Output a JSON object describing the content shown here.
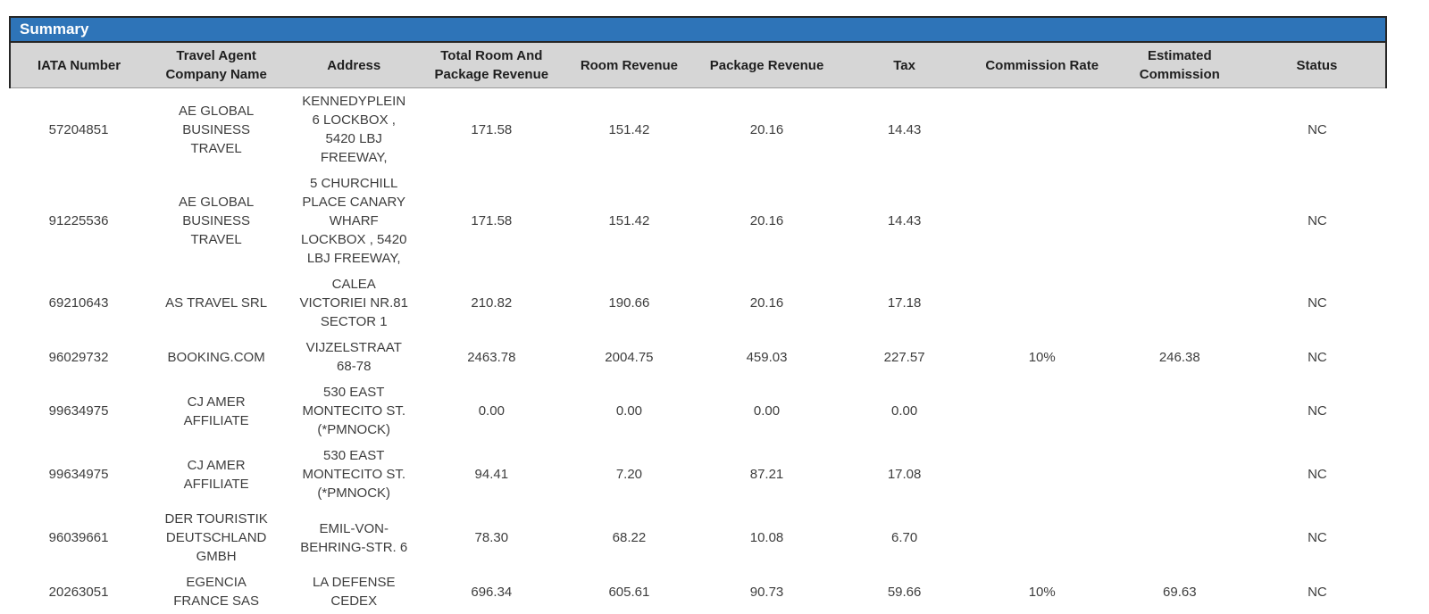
{
  "summary": {
    "title": "Summary"
  },
  "table": {
    "columns": [
      "IATA Number",
      "Travel Agent Company Name",
      "Address",
      "Total Room And Package Revenue",
      "Room Revenue",
      "Package Revenue",
      "Tax",
      "Commission Rate",
      "Estimated Commission",
      "Status"
    ],
    "rows": [
      {
        "iata": "57204851",
        "company": "AE GLOBAL BUSINESS TRAVEL",
        "address": "KENNEDYPLEIN 6 LOCKBOX , 5420 LBJ FREEWAY,",
        "total": "171.58",
        "room": "151.42",
        "package": "20.16",
        "tax": "14.43",
        "commission_rate": "",
        "estimated_commission": "",
        "status": "NC"
      },
      {
        "iata": "91225536",
        "company": "AE GLOBAL BUSINESS TRAVEL",
        "address": "5 CHURCHILL PLACE CANARY WHARF LOCKBOX , 5420 LBJ FREEWAY,",
        "total": "171.58",
        "room": "151.42",
        "package": "20.16",
        "tax": "14.43",
        "commission_rate": "",
        "estimated_commission": "",
        "status": "NC"
      },
      {
        "iata": "69210643",
        "company": "AS TRAVEL SRL",
        "address": "CALEA VICTORIEI NR.81 SECTOR 1",
        "total": "210.82",
        "room": "190.66",
        "package": "20.16",
        "tax": "17.18",
        "commission_rate": "",
        "estimated_commission": "",
        "status": "NC"
      },
      {
        "iata": "96029732",
        "company": "BOOKING.COM",
        "address": "VIJZELSTRAAT 68-78",
        "total": "2463.78",
        "room": "2004.75",
        "package": "459.03",
        "tax": "227.57",
        "commission_rate": "10%",
        "estimated_commission": "246.38",
        "status": "NC"
      },
      {
        "iata": "99634975",
        "company": "CJ AMER AFFILIATE",
        "address": "530 EAST MONTECITO ST. (*PMNOCK)",
        "total": "0.00",
        "room": "0.00",
        "package": "0.00",
        "tax": "0.00",
        "commission_rate": "",
        "estimated_commission": "",
        "status": "NC"
      },
      {
        "iata": "99634975",
        "company": "CJ AMER AFFILIATE",
        "address": "530 EAST MONTECITO ST. (*PMNOCK)",
        "total": "94.41",
        "room": "7.20",
        "package": "87.21",
        "tax": "17.08",
        "commission_rate": "",
        "estimated_commission": "",
        "status": "NC"
      },
      {
        "iata": "96039661",
        "company": "DER TOURISTIK DEUTSCHLAND GMBH",
        "address": "EMIL-VON-BEHRING-STR. 6",
        "total": "78.30",
        "room": "68.22",
        "package": "10.08",
        "tax": "6.70",
        "commission_rate": "",
        "estimated_commission": "",
        "status": "NC"
      },
      {
        "iata": "20263051",
        "company": "EGENCIA FRANCE SAS",
        "address": "LA DEFENSE CEDEX",
        "total": "696.34",
        "room": "605.61",
        "package": "90.73",
        "tax": "59.66",
        "commission_rate": "10%",
        "estimated_commission": "69.63",
        "status": "NC"
      }
    ]
  },
  "colors": {
    "title_bar_bg": "#2e74b8",
    "title_text": "#ffffff",
    "column_header_bg": "#d6d6d6",
    "outer_border": "#262626",
    "body_text": "#3d3d3d"
  }
}
